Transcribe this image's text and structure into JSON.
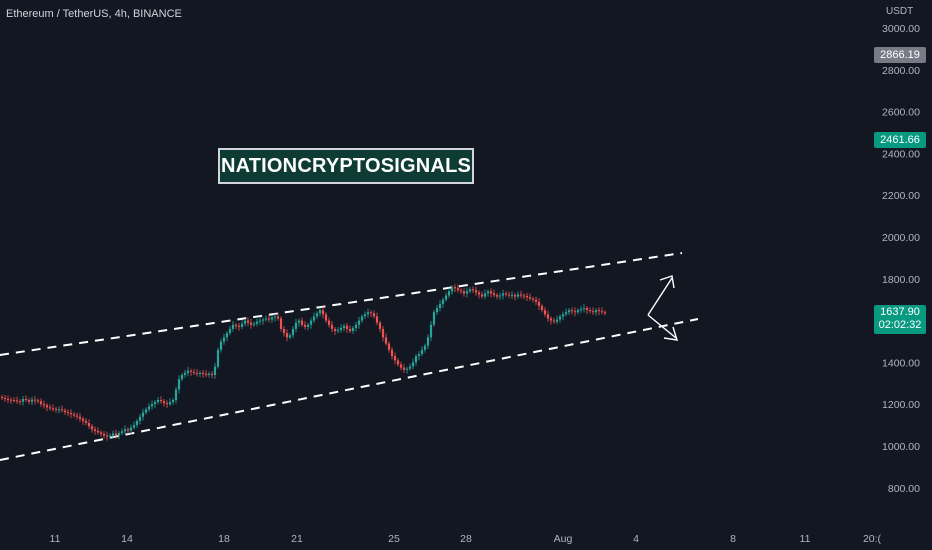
{
  "header": {
    "title": "Ethereum / TetherUS, 4h, BINANCE",
    "watermark": "NATIONCRYPTOSIGNALS"
  },
  "price_axis": {
    "unit": "USDT",
    "ticks": [
      "3000.00",
      "2800.00",
      "2600.00",
      "2400.00",
      "2200.00",
      "2000.00",
      "1800.00",
      "1600.00",
      "1400.00",
      "1200.00",
      "1000.00",
      "800.00"
    ],
    "markers": [
      {
        "value": "2866.19",
        "color": "#787b86"
      },
      {
        "value": "2461.66",
        "color": "#089981"
      }
    ],
    "current_price": "1637.90",
    "countdown": "02:02:32"
  },
  "time_axis": {
    "ticks": [
      "11",
      "14",
      "18",
      "21",
      "25",
      "28",
      "Aug",
      "4",
      "8",
      "11",
      "20:("
    ]
  },
  "colors": {
    "background": "#131722",
    "up": "#26a69a",
    "down": "#ef5350",
    "text": "#b2b5be",
    "badge_green": "#089981",
    "badge_grey": "#787b86"
  },
  "chart_data": {
    "type": "candlestick",
    "title": "Ethereum / TetherUS, 4h, BINANCE",
    "ylabel": "USDT",
    "ylim": [
      700,
      3050
    ],
    "x_tick_labels": [
      "11",
      "14",
      "18",
      "21",
      "25",
      "28",
      "Aug",
      "4",
      "8",
      "11",
      "20:("
    ],
    "close_series": [
      1230,
      1225,
      1222,
      1220,
      1218,
      1214,
      1212,
      1225,
      1220,
      1212,
      1222,
      1218,
      1214,
      1200,
      1195,
      1185,
      1180,
      1178,
      1175,
      1175,
      1170,
      1162,
      1158,
      1152,
      1146,
      1140,
      1130,
      1120,
      1110,
      1095,
      1080,
      1072,
      1065,
      1058,
      1050,
      1045,
      1050,
      1060,
      1052,
      1062,
      1070,
      1080,
      1074,
      1088,
      1100,
      1120,
      1140,
      1160,
      1175,
      1190,
      1200,
      1210,
      1220,
      1215,
      1205,
      1200,
      1210,
      1220,
      1270,
      1320,
      1340,
      1350,
      1360,
      1355,
      1350,
      1345,
      1350,
      1345,
      1340,
      1345,
      1340,
      1380,
      1460,
      1500,
      1520,
      1540,
      1560,
      1580,
      1575,
      1570,
      1585,
      1600,
      1590,
      1580,
      1585,
      1595,
      1600,
      1605,
      1610,
      1605,
      1615,
      1620,
      1610,
      1560,
      1540,
      1520,
      1530,
      1560,
      1590,
      1600,
      1580,
      1570,
      1580,
      1600,
      1620,
      1635,
      1650,
      1630,
      1600,
      1580,
      1560,
      1550,
      1555,
      1565,
      1575,
      1560,
      1550,
      1565,
      1580,
      1600,
      1620,
      1630,
      1640,
      1635,
      1620,
      1590,
      1560,
      1520,
      1490,
      1460,
      1430,
      1410,
      1390,
      1375,
      1365,
      1370,
      1380,
      1400,
      1430,
      1440,
      1460,
      1480,
      1520,
      1580,
      1640,
      1660,
      1680,
      1700,
      1720,
      1740,
      1760,
      1755,
      1745,
      1740,
      1730,
      1740,
      1750,
      1745,
      1735,
      1725,
      1715,
      1730,
      1740,
      1730,
      1722,
      1715,
      1720,
      1730,
      1725,
      1720,
      1722,
      1715,
      1725,
      1720,
      1718,
      1712,
      1705,
      1700,
      1690,
      1670,
      1650,
      1630,
      1610,
      1600,
      1595,
      1605,
      1620,
      1630,
      1640,
      1650,
      1645,
      1640,
      1650,
      1655,
      1660,
      1650,
      1645,
      1640,
      1650,
      1645,
      1640,
      1637.9
    ],
    "annotations": [
      {
        "type": "channel-line",
        "from": {
          "t": "start",
          "price": 1450
        },
        "to": {
          "t": "end",
          "price": 1930
        }
      },
      {
        "type": "channel-line",
        "from": {
          "t": "start",
          "price": 940
        },
        "to": {
          "t": "end",
          "price": 1590
        }
      },
      {
        "type": "arrow",
        "direction": "up"
      },
      {
        "type": "arrow",
        "direction": "down"
      }
    ]
  }
}
